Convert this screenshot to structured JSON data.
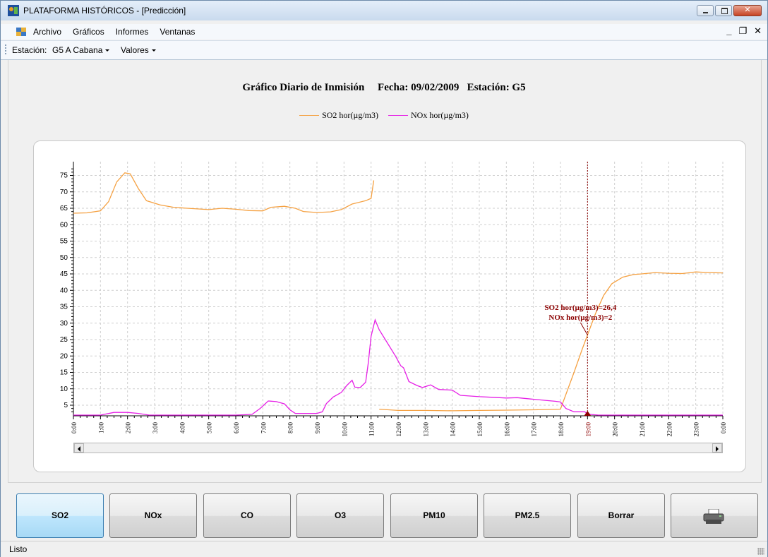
{
  "window": {
    "title": "PLATAFORMA HISTÓRICOS - [Predicción]"
  },
  "menu": {
    "items": [
      "Archivo",
      "Gráficos",
      "Informes",
      "Ventanas"
    ]
  },
  "toolbar": {
    "station_label": "Estación:",
    "station_value": "G5 A Cabana",
    "values_label": "Valores"
  },
  "chart": {
    "title": "Gráfico Diario de Inmisión     Fecha: 09/02/2009   Estación: G5",
    "legend": [
      {
        "name": "SO2 hor(µg/m3)",
        "color": "#f5a142"
      },
      {
        "name": "NOx hor(µg/m3)",
        "color": "#e620e6"
      }
    ],
    "tooltip": {
      "line1": "SO2 hor(µg/m3)=26,4",
      "line2": "NOx hor(µg/m3)=2"
    },
    "cursor_color": "#8b0000"
  },
  "chart_data": {
    "type": "line",
    "x_ticks": [
      "0:00",
      "1:00",
      "2:00",
      "3:00",
      "4:00",
      "5:00",
      "6:00",
      "7:00",
      "8:00",
      "9:00",
      "10:00",
      "11:00",
      "12:00",
      "13:00",
      "14:00",
      "15:00",
      "16:00",
      "17:00",
      "18:00",
      "19:00",
      "20:00",
      "21:00",
      "22:00",
      "23:00",
      "0:00"
    ],
    "y_ticks": [
      5,
      10,
      15,
      20,
      25,
      30,
      35,
      40,
      45,
      50,
      55,
      60,
      65,
      70,
      75
    ],
    "ylim": [
      2,
      78
    ],
    "xlim": [
      0,
      24
    ],
    "cursor_x": 19.0,
    "series": [
      {
        "name": "SO2 hor(µg/m3)",
        "color": "#f5a142",
        "segments": [
          [
            [
              0,
              63.5
            ],
            [
              0.5,
              63.6
            ],
            [
              1.0,
              64.2
            ],
            [
              1.3,
              67
            ],
            [
              1.6,
              73
            ],
            [
              1.9,
              75.8
            ],
            [
              2.1,
              75.5
            ],
            [
              2.4,
              71
            ],
            [
              2.7,
              67.3
            ],
            [
              3.2,
              66
            ],
            [
              3.7,
              65.3
            ],
            [
              4.2,
              65
            ],
            [
              5.0,
              64.6
            ],
            [
              5.5,
              65
            ],
            [
              6.0,
              64.7
            ],
            [
              6.5,
              64.3
            ],
            [
              7.0,
              64.2
            ],
            [
              7.3,
              65.3
            ],
            [
              7.8,
              65.6
            ],
            [
              8.2,
              65
            ],
            [
              8.5,
              64
            ],
            [
              9.0,
              63.7
            ],
            [
              9.5,
              63.9
            ],
            [
              9.9,
              64.6
            ],
            [
              10.3,
              66.3
            ],
            [
              10.8,
              67.3
            ],
            [
              11.0,
              68
            ],
            [
              11.1,
              73.5
            ]
          ],
          [
            [
              11.3,
              3.8
            ],
            [
              12.0,
              3.4
            ],
            [
              13.0,
              3.4
            ],
            [
              14.0,
              3.3
            ],
            [
              15.0,
              3.4
            ],
            [
              16.0,
              3.5
            ],
            [
              17.0,
              3.6
            ],
            [
              18.0,
              3.8
            ],
            [
              18.5,
              15
            ],
            [
              18.8,
              22
            ],
            [
              19.0,
              26.4
            ],
            [
              19.3,
              33
            ],
            [
              19.6,
              38.5
            ],
            [
              19.9,
              42
            ],
            [
              20.3,
              44
            ],
            [
              20.7,
              44.8
            ],
            [
              21.0,
              45
            ],
            [
              21.5,
              45.4
            ],
            [
              22.0,
              45.2
            ],
            [
              22.5,
              45.1
            ],
            [
              23.0,
              45.6
            ],
            [
              23.5,
              45.4
            ],
            [
              24.0,
              45.3
            ]
          ]
        ]
      },
      {
        "name": "NOx hor(µg/m3)",
        "color": "#e620e6",
        "segments": [
          [
            [
              0,
              2
            ],
            [
              1.0,
              2
            ],
            [
              1.5,
              2.8
            ],
            [
              2.0,
              2.8
            ],
            [
              2.4,
              2.5
            ],
            [
              2.8,
              2
            ],
            [
              4.0,
              2
            ],
            [
              5.0,
              2
            ],
            [
              6.0,
              2
            ],
            [
              6.6,
              2.2
            ],
            [
              6.9,
              4
            ],
            [
              7.2,
              6.3
            ],
            [
              7.5,
              6.1
            ],
            [
              7.8,
              5.4
            ],
            [
              8.0,
              3.6
            ],
            [
              8.2,
              2.5
            ],
            [
              8.6,
              2.5
            ],
            [
              9.0,
              2.5
            ],
            [
              9.2,
              3
            ],
            [
              9.35,
              5.5
            ],
            [
              9.6,
              7.5
            ],
            [
              9.9,
              8.9
            ],
            [
              10.1,
              11
            ],
            [
              10.3,
              12.6
            ],
            [
              10.4,
              10.5
            ],
            [
              10.6,
              10.4
            ],
            [
              10.8,
              12
            ],
            [
              10.9,
              18
            ],
            [
              11.0,
              26
            ],
            [
              11.15,
              31
            ],
            [
              11.3,
              28
            ],
            [
              11.6,
              24
            ],
            [
              11.9,
              20
            ],
            [
              12.1,
              17
            ],
            [
              12.2,
              16.4
            ],
            [
              12.4,
              12.2
            ],
            [
              12.7,
              11
            ],
            [
              12.9,
              10.4
            ],
            [
              13.2,
              11.2
            ],
            [
              13.5,
              9.8
            ],
            [
              14.0,
              9.6
            ],
            [
              14.3,
              8
            ],
            [
              15.0,
              7.6
            ],
            [
              15.5,
              7.4
            ],
            [
              16.0,
              7.2
            ],
            [
              16.4,
              7.3
            ],
            [
              16.9,
              6.9
            ],
            [
              17.4,
              6.5
            ],
            [
              17.8,
              6.2
            ],
            [
              18.0,
              6
            ],
            [
              18.2,
              4
            ],
            [
              18.5,
              3
            ],
            [
              18.9,
              3
            ],
            [
              19.0,
              2.3
            ],
            [
              19.4,
              2
            ],
            [
              20.0,
              2
            ],
            [
              24.0,
              2
            ]
          ]
        ]
      }
    ]
  },
  "buttons": {
    "so2": "SO2",
    "nox": "NOx",
    "co": "CO",
    "o3": "O3",
    "pm10": "PM10",
    "pm25": "PM2.5",
    "borrar": "Borrar"
  },
  "status": {
    "text": "Listo"
  }
}
